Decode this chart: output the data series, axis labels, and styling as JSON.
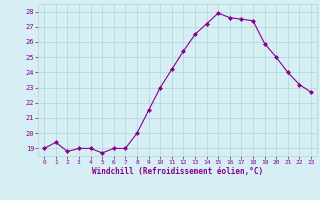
{
  "x": [
    0,
    1,
    2,
    3,
    4,
    5,
    6,
    7,
    8,
    9,
    10,
    11,
    12,
    13,
    14,
    15,
    16,
    17,
    18,
    19,
    20,
    21,
    22,
    23
  ],
  "y": [
    19.0,
    19.4,
    18.8,
    19.0,
    19.0,
    18.7,
    19.0,
    19.0,
    20.0,
    21.5,
    23.0,
    24.2,
    25.4,
    26.5,
    27.2,
    27.9,
    27.6,
    27.5,
    27.4,
    25.9,
    25.0,
    24.0,
    23.2,
    22.7
  ],
  "line_color": "#8B008B",
  "marker": "D",
  "marker_size": 2,
  "bg_color": "#d6eff5",
  "grid_color": "#b0d4dc",
  "xlabel": "Windchill (Refroidissement éolien,°C)",
  "xlabel_color": "#8B008B",
  "tick_color": "#8B008B",
  "ylim": [
    18.5,
    28.5
  ],
  "yticks": [
    19,
    20,
    21,
    22,
    23,
    24,
    25,
    26,
    27,
    28
  ],
  "xlim": [
    -0.5,
    23.5
  ],
  "xticks": [
    0,
    1,
    2,
    3,
    4,
    5,
    6,
    7,
    8,
    9,
    10,
    11,
    12,
    13,
    14,
    15,
    16,
    17,
    18,
    19,
    20,
    21,
    22,
    23
  ]
}
